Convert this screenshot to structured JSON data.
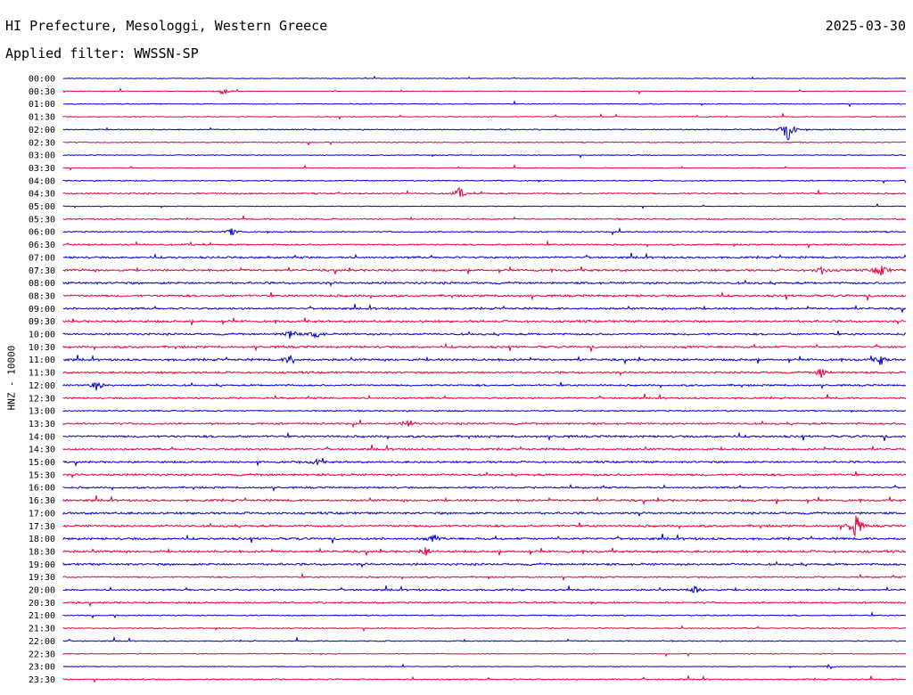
{
  "header": {
    "station": "HI Prefecture, Mesologgi, Western Greece",
    "date": "2025-03-30",
    "filter": "Applied filter: WWSSN-SP",
    "channel": "HNZ - 10000"
  },
  "chart_data": {
    "type": "line",
    "title": "HI Prefecture, Mesologgi, Western Greece",
    "subtitle": "Applied filter: WWSSN-SP",
    "ylabel": "HNZ - 10000",
    "xlabel": "",
    "rows": [
      "00:00",
      "00:30",
      "01:00",
      "01:30",
      "02:00",
      "02:30",
      "03:00",
      "03:30",
      "04:00",
      "04:30",
      "05:00",
      "05:30",
      "06:00",
      "06:30",
      "07:00",
      "07:30",
      "08:00",
      "08:30",
      "09:00",
      "09:30",
      "10:00",
      "10:30",
      "11:00",
      "11:30",
      "12:00",
      "12:30",
      "13:00",
      "13:30",
      "14:00",
      "14:30",
      "15:00",
      "15:30",
      "16:00",
      "16:30",
      "17:00",
      "17:30",
      "18:00",
      "18:30",
      "19:00",
      "19:30",
      "20:00",
      "20:30",
      "21:00",
      "21:30",
      "22:00",
      "22:30",
      "23:00",
      "23:30"
    ],
    "colors": [
      "#0000cc",
      "#e8003c"
    ],
    "noise_level": [
      0.3,
      0.3,
      0.4,
      0.4,
      0.5,
      0.5,
      0.4,
      0.3,
      0.5,
      0.7,
      0.3,
      0.6,
      0.6,
      0.7,
      0.9,
      1.0,
      1.0,
      1.0,
      0.9,
      1.0,
      0.9,
      1.0,
      1.0,
      0.9,
      0.8,
      0.8,
      0.6,
      0.9,
      1.0,
      0.9,
      0.9,
      1.0,
      0.8,
      1.0,
      1.0,
      1.0,
      1.0,
      1.0,
      1.0,
      0.7,
      0.8,
      0.8,
      0.5,
      0.5,
      0.5,
      0.4,
      0.3,
      0.6
    ],
    "events": [
      {
        "row": 4,
        "x": 0.86,
        "amplitude": 18
      },
      {
        "row": 1,
        "x": 0.19,
        "amplitude": 5
      },
      {
        "row": 9,
        "x": 0.47,
        "amplitude": 6
      },
      {
        "row": 15,
        "x": 0.97,
        "amplitude": 10
      },
      {
        "row": 15,
        "x": 0.9,
        "amplitude": 5
      },
      {
        "row": 20,
        "x": 0.27,
        "amplitude": 7
      },
      {
        "row": 20,
        "x": 0.3,
        "amplitude": 5
      },
      {
        "row": 22,
        "x": 0.27,
        "amplitude": 6
      },
      {
        "row": 22,
        "x": 0.97,
        "amplitude": 6
      },
      {
        "row": 23,
        "x": 0.9,
        "amplitude": 6
      },
      {
        "row": 24,
        "x": 0.04,
        "amplitude": 6
      },
      {
        "row": 35,
        "x": 0.94,
        "amplitude": 20
      },
      {
        "row": 36,
        "x": 0.44,
        "amplitude": 5
      },
      {
        "row": 37,
        "x": 0.43,
        "amplitude": 6
      },
      {
        "row": 40,
        "x": 0.75,
        "amplitude": 5
      },
      {
        "row": 27,
        "x": 0.41,
        "amplitude": 5
      },
      {
        "row": 12,
        "x": 0.2,
        "amplitude": 4
      },
      {
        "row": 30,
        "x": 0.3,
        "amplitude": 4
      },
      {
        "row": 46,
        "x": 0.91,
        "amplitude": 3
      }
    ]
  }
}
